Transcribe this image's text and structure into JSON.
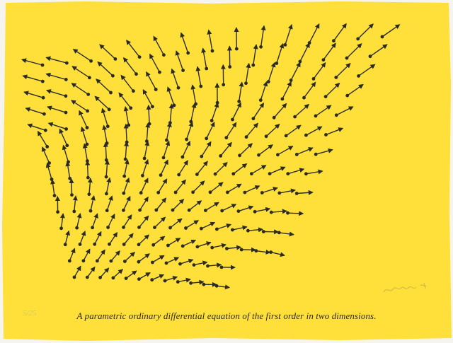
{
  "print": {
    "caption": "A parametric ordinary differential equation of the first order in two dimensions.",
    "edition_mark": "5/25",
    "signature": "artist-signature",
    "paper_color": "#ffdf3a",
    "ink_color": "#2b2b26",
    "background_color": "#f6f4ee"
  }
}
